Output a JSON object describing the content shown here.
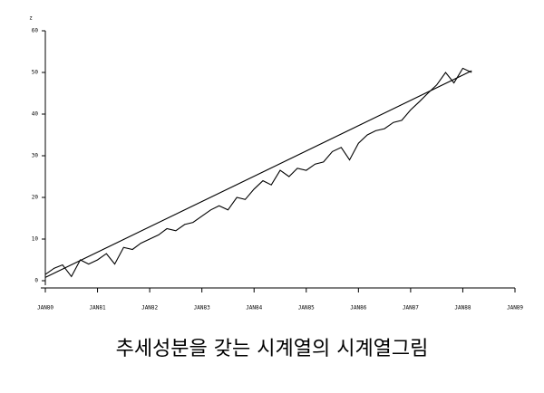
{
  "chart_data": {
    "type": "line",
    "caption": "추세성분을 갖는 시계열의 시계열그림",
    "ylabel": "z",
    "xlim": [
      1980,
      1989
    ],
    "xticks": [
      {
        "value": 1980,
        "label": "JAN80"
      },
      {
        "value": 1981,
        "label": "JAN81"
      },
      {
        "value": 1982,
        "label": "JAN82"
      },
      {
        "value": 1983,
        "label": "JAN83"
      },
      {
        "value": 1984,
        "label": "JAN84"
      },
      {
        "value": 1985,
        "label": "JAN85"
      },
      {
        "value": 1986,
        "label": "JAN86"
      },
      {
        "value": 1987,
        "label": "JAN87"
      },
      {
        "value": 1988,
        "label": "JAN88"
      },
      {
        "value": 1989,
        "label": "JAN89"
      }
    ],
    "ylim": [
      0,
      60
    ],
    "yticks": [
      0,
      10,
      20,
      30,
      40,
      50,
      60
    ],
    "series": [
      {
        "color": "#000000",
        "x": [
          1980,
          1980.17,
          1980.33,
          1980.5,
          1980.67,
          1980.83,
          1981,
          1981.17,
          1981.33,
          1981.5,
          1981.67,
          1981.83,
          1982,
          1982.17,
          1982.33,
          1982.5,
          1982.67,
          1982.83,
          1983,
          1983.17,
          1983.33,
          1983.5,
          1983.67,
          1983.83,
          1984,
          1984.17,
          1984.33,
          1984.5,
          1984.67,
          1984.83,
          1985,
          1985.17,
          1985.33,
          1985.5,
          1985.67,
          1985.83,
          1986,
          1986.17,
          1986.33,
          1986.5,
          1986.67,
          1986.83,
          1987,
          1987.17,
          1987.33,
          1987.5,
          1987.67,
          1987.83,
          1988,
          1988.17
        ],
        "values": [
          1.5,
          3,
          3.8,
          1,
          5,
          4,
          5,
          6.5,
          4,
          8,
          7.5,
          9,
          10,
          11,
          12.5,
          12,
          13.5,
          14,
          15.5,
          17,
          18,
          17,
          20,
          19.5,
          22,
          24,
          23,
          26.5,
          25,
          27,
          26.5,
          28,
          28.5,
          31,
          32,
          29,
          33,
          35,
          36,
          36.5,
          38,
          38.5,
          41,
          43,
          45,
          47,
          50,
          47.5,
          51,
          50
        ]
      },
      {
        "color": "#000000",
        "x": [
          1980,
          1988.17
        ],
        "values": [
          0.8,
          50.4
        ]
      }
    ]
  }
}
